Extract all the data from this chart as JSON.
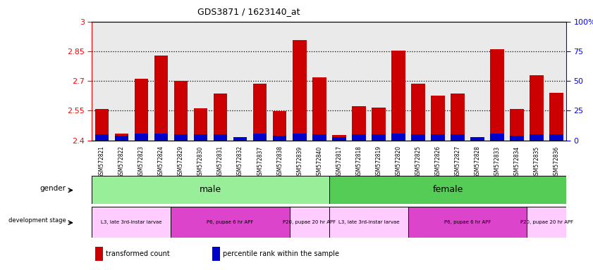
{
  "title": "GDS3871 / 1623140_at",
  "samples": [
    "GSM572821",
    "GSM572822",
    "GSM572823",
    "GSM572824",
    "GSM572829",
    "GSM572830",
    "GSM572831",
    "GSM572832",
    "GSM572837",
    "GSM572838",
    "GSM572839",
    "GSM572840",
    "GSM572817",
    "GSM572818",
    "GSM572819",
    "GSM572820",
    "GSM572825",
    "GSM572826",
    "GSM572827",
    "GSM572828",
    "GSM572833",
    "GSM572834",
    "GSM572835",
    "GSM572836"
  ],
  "transformed_count": [
    2.557,
    2.433,
    2.713,
    2.83,
    2.7,
    2.563,
    2.638,
    2.407,
    2.685,
    2.547,
    2.905,
    2.718,
    2.428,
    2.573,
    2.567,
    2.855,
    2.686,
    2.627,
    2.637,
    2.413,
    2.86,
    2.56,
    2.73,
    2.64
  ],
  "percentile_rank": [
    5,
    4,
    6,
    6,
    5,
    5,
    5,
    3,
    6,
    4,
    6,
    5,
    3,
    5,
    5,
    6,
    5,
    5,
    5,
    3,
    6,
    4,
    5,
    5
  ],
  "ylim_left": [
    2.4,
    3.0
  ],
  "ylim_right": [
    0,
    100
  ],
  "yticks_left": [
    2.4,
    2.55,
    2.7,
    2.85,
    3.0
  ],
  "ytick_labels_left": [
    "2.4",
    "2.55",
    "2.7",
    "2.85",
    "3"
  ],
  "yticks_right": [
    0,
    25,
    50,
    75,
    100
  ],
  "ytick_labels_right": [
    "0",
    "25",
    "50",
    "75",
    "100%"
  ],
  "grid_lines": [
    2.55,
    2.7,
    2.85
  ],
  "bar_color_red": "#cc0000",
  "bar_color_blue": "#0000cc",
  "bar_bg_color": "#cccccc",
  "gender_groups": [
    {
      "label": "male",
      "start": 0,
      "end": 11,
      "color": "#99ee99"
    },
    {
      "label": "female",
      "start": 12,
      "end": 23,
      "color": "#55cc55"
    }
  ],
  "dev_stage_groups": [
    {
      "label": "L3, late 3rd-instar larvae",
      "start": 0,
      "end": 3,
      "color": "#ffccff"
    },
    {
      "label": "P6, pupae 6 hr APF",
      "start": 4,
      "end": 9,
      "color": "#dd44cc"
    },
    {
      "label": "P20, pupae 20 hr APF",
      "start": 10,
      "end": 11,
      "color": "#ffccff"
    },
    {
      "label": "L3, late 3rd-instar larvae",
      "start": 12,
      "end": 15,
      "color": "#ffccff"
    },
    {
      "label": "P6, pupae 6 hr APF",
      "start": 16,
      "end": 21,
      "color": "#dd44cc"
    },
    {
      "label": "P20, pupae 20 hr APF",
      "start": 22,
      "end": 23,
      "color": "#ffccff"
    }
  ],
  "legend_items": [
    {
      "label": "transformed count",
      "color": "#cc0000"
    },
    {
      "label": "percentile rank within the sample",
      "color": "#0000cc"
    }
  ],
  "fig_width": 8.41,
  "fig_height": 3.84
}
